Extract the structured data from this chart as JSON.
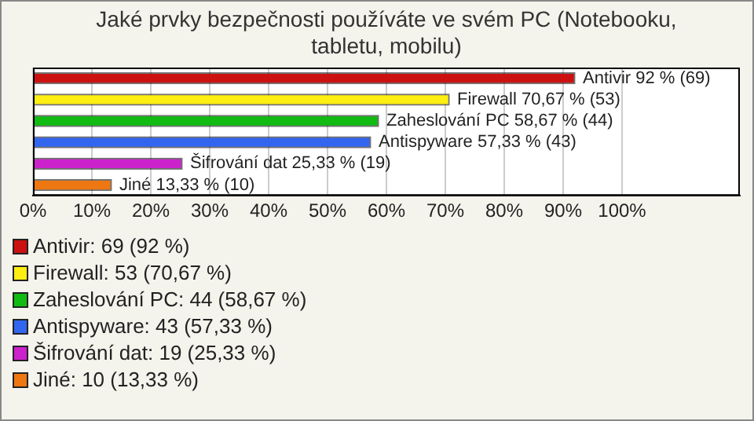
{
  "chart_data": {
    "type": "bar",
    "orientation": "horizontal",
    "title": "Jaké prvky bezpečnosti používáte ve svém PC (Notebooku, tabletu, mobilu)",
    "categories": [
      null,
      null,
      null,
      null,
      null,
      null
    ],
    "series": [
      {
        "name": "Antivir: 69 (92 %)",
        "color": "#cc1111",
        "values": [
          92,
          null,
          null,
          null,
          null,
          null
        ],
        "value_labels": [
          "Antivir 92 % (69)",
          null,
          null,
          null,
          null,
          null
        ]
      },
      {
        "name": "Firewall: 53 (70,67 %)",
        "color": "#ffee11",
        "values": [
          null,
          70.67,
          null,
          null,
          null,
          null
        ],
        "value_labels": [
          null,
          "Firewall 70,67 % (53)",
          null,
          null,
          null,
          null
        ]
      },
      {
        "name": "Zaheslování PC: 44 (58,67 %)",
        "color": "#11bb11",
        "values": [
          null,
          null,
          58.67,
          null,
          null,
          null
        ],
        "value_labels": [
          null,
          null,
          "Zaheslování PC 58,67 % (44)",
          null,
          null,
          null
        ]
      },
      {
        "name": "Antispyware: 43 (57,33 %)",
        "color": "#3366ee",
        "values": [
          null,
          null,
          null,
          57.33,
          null,
          null
        ],
        "value_labels": [
          null,
          null,
          null,
          "Antispyware 57,33 % (43)",
          null,
          null
        ]
      },
      {
        "name": "Šifrování dat: 19 (25,33 %)",
        "color": "#cc22cc",
        "values": [
          null,
          null,
          null,
          null,
          25.33,
          null
        ],
        "value_labels": [
          null,
          null,
          null,
          null,
          "Šifrování dat 25,33 % (19)",
          null
        ]
      },
      {
        "name": "Jiné: 10 (13,33 %)",
        "color": "#ee7711",
        "values": [
          null,
          null,
          null,
          null,
          null,
          13.33
        ],
        "value_labels": [
          null,
          null,
          null,
          null,
          null,
          "Jiné 13,33 % (10)"
        ]
      }
    ],
    "xlim": [
      0,
      120
    ],
    "xticks": [
      {
        "value": 0,
        "label": "0%"
      },
      {
        "value": 10,
        "label": "10%"
      },
      {
        "value": 20,
        "label": "20%"
      },
      {
        "value": 30,
        "label": "30%"
      },
      {
        "value": 40,
        "label": "40%"
      },
      {
        "value": 50,
        "label": "50%"
      },
      {
        "value": 60,
        "label": "60%"
      },
      {
        "value": 70,
        "label": "70%"
      },
      {
        "value": 80,
        "label": "80%"
      },
      {
        "value": 90,
        "label": "90%"
      },
      {
        "value": 100,
        "label": "100%"
      }
    ],
    "grid": "x",
    "legend": "bottom",
    "tick_labels": "x"
  }
}
